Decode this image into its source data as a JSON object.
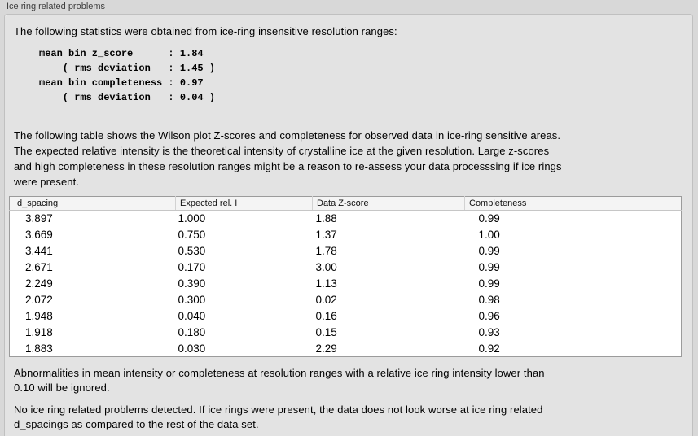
{
  "panel": {
    "title": "Ice ring related problems"
  },
  "intro": "The following statistics were obtained from ice-ring insensitive resolution ranges:",
  "stats_block": "mean bin z_score      : 1.84\n    ( rms deviation   : 1.45 )\nmean bin completeness : 0.97\n    ( rms deviation   : 0.04 )",
  "table_description": "The following table shows the Wilson plot Z-scores and completeness for observed data in ice-ring sensitive areas.\nThe expected relative intensity is the theoretical intensity of crystalline ice at the given resolution. Large z-scores\nand high completeness in these resolution ranges might be a reason to re-assess your data processsing if ice rings\nwere present.",
  "table": {
    "columns": [
      "d_spacing",
      "Expected rel. I",
      "Data Z-score",
      "Completeness"
    ],
    "rows": [
      [
        "3.897",
        "1.000",
        "1.88",
        "0.99"
      ],
      [
        "3.669",
        "0.750",
        "1.37",
        "1.00"
      ],
      [
        "3.441",
        "0.530",
        "1.78",
        "0.99"
      ],
      [
        "2.671",
        "0.170",
        "3.00",
        "0.99"
      ],
      [
        "2.249",
        "0.390",
        "1.13",
        "0.99"
      ],
      [
        "2.072",
        "0.300",
        "0.02",
        "0.98"
      ],
      [
        "1.948",
        "0.040",
        "0.16",
        "0.96"
      ],
      [
        "1.918",
        "0.180",
        "0.15",
        "0.93"
      ],
      [
        "1.883",
        "0.030",
        "2.29",
        "0.92"
      ]
    ]
  },
  "note_ignore": "Abnormalities in mean intensity or completeness at resolution ranges with a relative ice ring intensity lower than\n0.10 will be ignored.",
  "conclusion": "No ice ring related problems detected. If ice rings were present, the data does not look worse at ice ring related\nd_spacings as compared to the rest of the data set.",
  "colors": {
    "window_bg": "#d8d8d8",
    "panel_bg": "#e3e3e3",
    "table_border": "#9b9b9b"
  }
}
